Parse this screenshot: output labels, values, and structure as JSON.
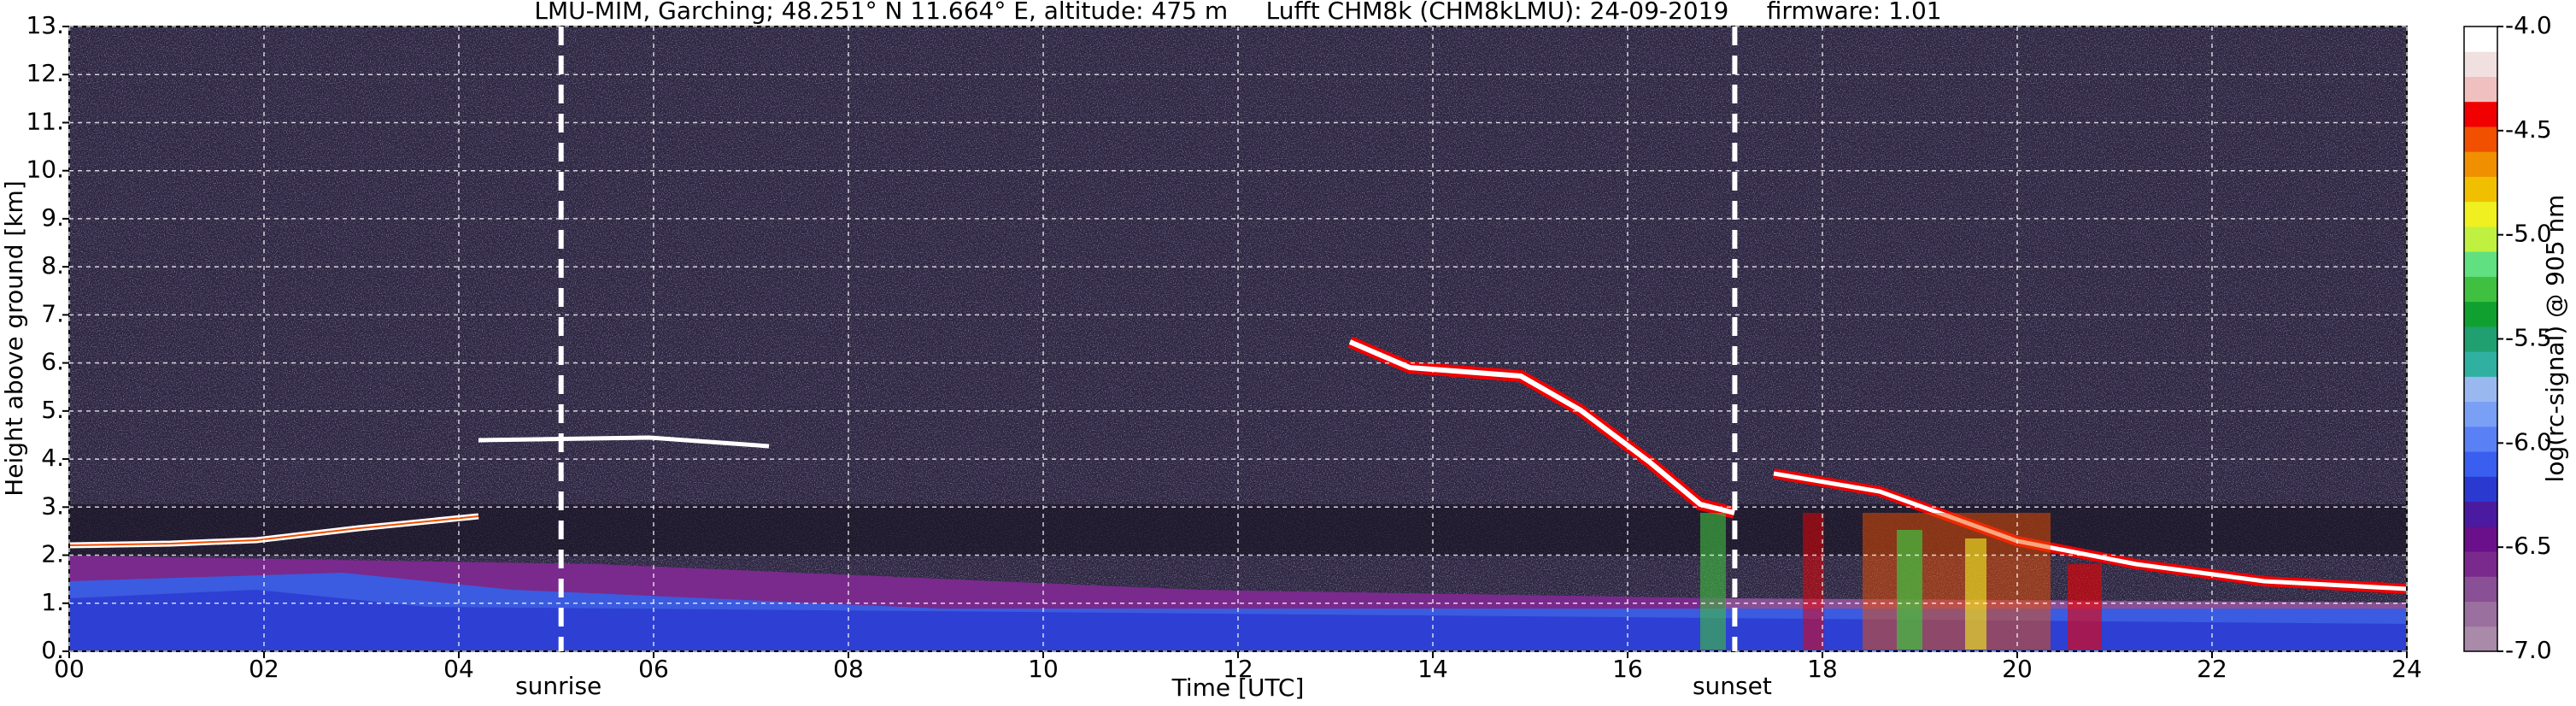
{
  "chart_data": {
    "type": "heatmap",
    "title": "LMU-MIM, Garching; 48.251° N 11.664° E, altitude: 475 m     Lufft CHM8k (CHM8kLMU): 24-09-2019     firmware: 1.01",
    "xlabel": "Time [UTC]",
    "ylabel": "Height above ground [km]",
    "xlim": [
      0,
      24
    ],
    "ylim": [
      0,
      13
    ],
    "xticks": [
      {
        "value": 0,
        "label": "00"
      },
      {
        "value": 2,
        "label": "02"
      },
      {
        "value": 4,
        "label": "04"
      },
      {
        "value": 6,
        "label": "06"
      },
      {
        "value": 8,
        "label": "08"
      },
      10,
      12,
      14,
      16,
      18,
      20,
      22,
      24
    ],
    "yticks": [
      {
        "value": 0,
        "label": "0."
      },
      {
        "value": 1,
        "label": "1."
      },
      {
        "value": 2,
        "label": "2."
      },
      {
        "value": 3,
        "label": "3."
      },
      {
        "value": 4,
        "label": "4."
      },
      {
        "value": 5,
        "label": "5."
      },
      {
        "value": 6,
        "label": "6."
      },
      {
        "value": 7,
        "label": "7."
      },
      {
        "value": 8,
        "label": "8."
      },
      {
        "value": 9,
        "label": "9."
      },
      {
        "value": 10,
        "label": "10."
      },
      {
        "value": 11,
        "label": "11."
      },
      {
        "value": 12,
        "label": "12."
      },
      {
        "value": 13,
        "label": "13."
      }
    ],
    "grid": true,
    "vlines": [
      {
        "x": 5.05,
        "label": "sunrise"
      },
      {
        "x": 17.1,
        "label": "sunset"
      }
    ],
    "colorbar": {
      "label": "log(rc-signal) @ 905 nm",
      "clim": [
        -7,
        -4
      ],
      "ticks": [
        {
          "value": -7,
          "label": "-7.0"
        },
        {
          "value": -6.5,
          "label": "-6.5"
        },
        {
          "value": -6,
          "label": "-6.0"
        },
        {
          "value": -5.5,
          "label": "-5.5"
        },
        {
          "value": -5,
          "label": "-5.0"
        },
        {
          "value": -4.5,
          "label": "-4.5"
        },
        {
          "value": -4,
          "label": "-4.0"
        }
      ],
      "colors": [
        "#a98aa9",
        "#9a709e",
        "#8a5095",
        "#7a2a8c",
        "#6a108a",
        "#4a1aa0",
        "#2a3ad0",
        "#3a5ef0",
        "#5a80f5",
        "#7aa0f5",
        "#9ab8f0",
        "#30b0a0",
        "#20a070",
        "#10a030",
        "#40c040",
        "#60e080",
        "#c0f040",
        "#f0f020",
        "#f0c000",
        "#f09000",
        "#f05000",
        "#f00000",
        "#f0c0c0",
        "#f0e0e0",
        "#ffffff"
      ]
    }
  }
}
